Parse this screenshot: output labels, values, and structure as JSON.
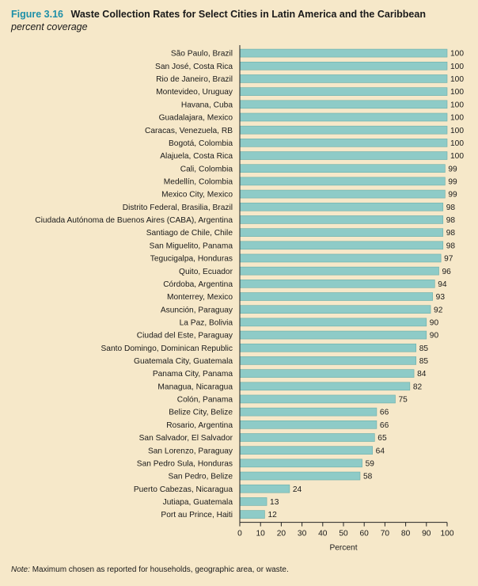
{
  "figure": {
    "label": "Figure 3.16",
    "title": "Waste Collection Rates for Select Cities in Latin America and the Caribbean",
    "subtitle": "percent coverage"
  },
  "note": {
    "label": "Note:",
    "text": "Maximum chosen as reported for households, geographic area, or waste."
  },
  "colors": {
    "bar": "#8ecbc7",
    "bar_stroke": "#6aaeaa",
    "axis": "#222222",
    "background": "#f6e8c9",
    "accent": "#1e8fa8"
  },
  "chart_data": {
    "type": "bar",
    "orientation": "horizontal",
    "categories": [
      "São Paulo, Brazil",
      "San José, Costa Rica",
      "Rio de Janeiro, Brazil",
      "Montevideo, Uruguay",
      "Havana, Cuba",
      "Guadalajara, Mexico",
      "Caracas, Venezuela, RB",
      "Bogotá, Colombia",
      "Alajuela, Costa Rica",
      "Cali, Colombia",
      "Medellín, Colombia",
      "Mexico City, Mexico",
      "Distrito Federal, Brasilia, Brazil",
      "Ciudada Autónoma de Buenos Aires (CABA), Argentina",
      "Santiago de Chile, Chile",
      "San Miguelito, Panama",
      "Tegucigalpa, Honduras",
      "Quito, Ecuador",
      "Córdoba, Argentina",
      "Monterrey, Mexico",
      "Asunción, Paraguay",
      "La Paz, Bolivia",
      "Ciudad del Este, Paraguay",
      "Santo Domingo, Dominican Republic",
      "Guatemala City, Guatemala",
      "Panama City, Panama",
      "Managua, Nicaragua",
      "Colón, Panama",
      "Belize City, Belize",
      "Rosario, Argentina",
      "San Salvador, El Salvador",
      "San Lorenzo, Paraguay",
      "San Pedro Sula, Honduras",
      "San Pedro, Belize",
      "Puerto Cabezas, Nicaragua",
      "Jutiapa, Guatemala",
      "Port au Prince, Haiti"
    ],
    "values": [
      100,
      100,
      100,
      100,
      100,
      100,
      100,
      100,
      100,
      99,
      99,
      99,
      98,
      98,
      98,
      98,
      97,
      96,
      94,
      93,
      92,
      90,
      90,
      85,
      85,
      84,
      82,
      75,
      66,
      66,
      65,
      64,
      59,
      58,
      24,
      13,
      12
    ],
    "xlabel": "Percent",
    "ylabel": "",
    "xlim": [
      0,
      100
    ],
    "xticks": [
      0,
      10,
      20,
      30,
      40,
      50,
      60,
      70,
      80,
      90,
      100
    ],
    "grid": false,
    "legend": "none",
    "data_labels": true
  }
}
